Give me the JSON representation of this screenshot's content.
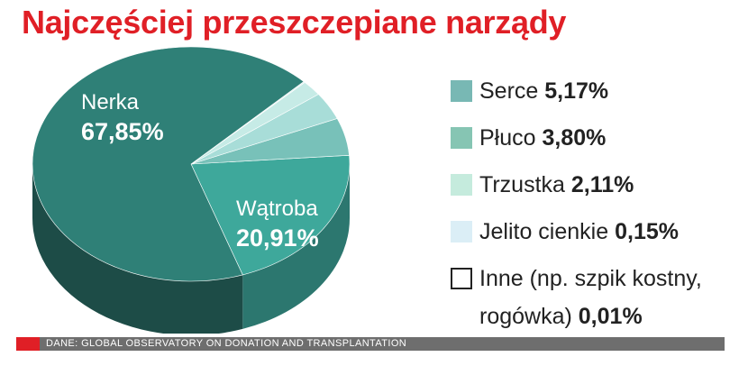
{
  "title": "Najczęściej przeszczepiane narządy",
  "source": "DANE: GLOBAL OBSERVATORY ON DONATION AND TRANSPLANTATION",
  "colors": {
    "title": "#e01f26",
    "source_bar": "#6e6e6e",
    "accent_block": "#e01f26"
  },
  "chart_data": {
    "type": "pie",
    "title": "Najczęściej przeszczepiane narządy",
    "slices": [
      {
        "label": "Nerka",
        "value_label": "67,85%",
        "value": 67.85,
        "color": "#2f8077",
        "side": "#1d4c47"
      },
      {
        "label": "Wątroba",
        "value_label": "20,91%",
        "value": 20.91,
        "color": "#3ea89b",
        "side": "#2c776f"
      },
      {
        "label": "Serce",
        "value_label": "5,17%",
        "value": 5.17,
        "color": "#78c1b9",
        "side": "#5a958f"
      },
      {
        "label": "Płuco",
        "value_label": "3,80%",
        "value": 3.8,
        "color": "#a8ddd8",
        "side": "#7fb2ad"
      },
      {
        "label": "Trzustka",
        "value_label": "2,11%",
        "value": 2.11,
        "color": "#c6ebe6",
        "side": "#97c6c0"
      },
      {
        "label": "Jelito cienkie",
        "value_label": "0,15%",
        "value": 0.15,
        "color": "#dcefef",
        "side": "#a9c9c9"
      },
      {
        "label": "Inne (np. szpik kostny, rogówka)",
        "value_label": "0,01%",
        "value": 0.01,
        "color": "#ffffff",
        "side": "#cccccc"
      }
    ],
    "legend": [
      {
        "label": "Serce",
        "value_label": "5,17%",
        "swatch": "#78b8b4"
      },
      {
        "label": "Płuco",
        "value_label": "3,80%",
        "swatch": "#86c5b3"
      },
      {
        "label": "Trzustka",
        "value_label": "2,11%",
        "swatch": "#c5ebdd"
      },
      {
        "label": "Jelito cienkie",
        "value_label": "0,15%",
        "swatch": "#dbeef6"
      },
      {
        "label": "Inne (np. szpik kostny, rogówka)",
        "value_label": "0,01%",
        "swatch": "#ffffff"
      }
    ],
    "legend_position": "right"
  }
}
